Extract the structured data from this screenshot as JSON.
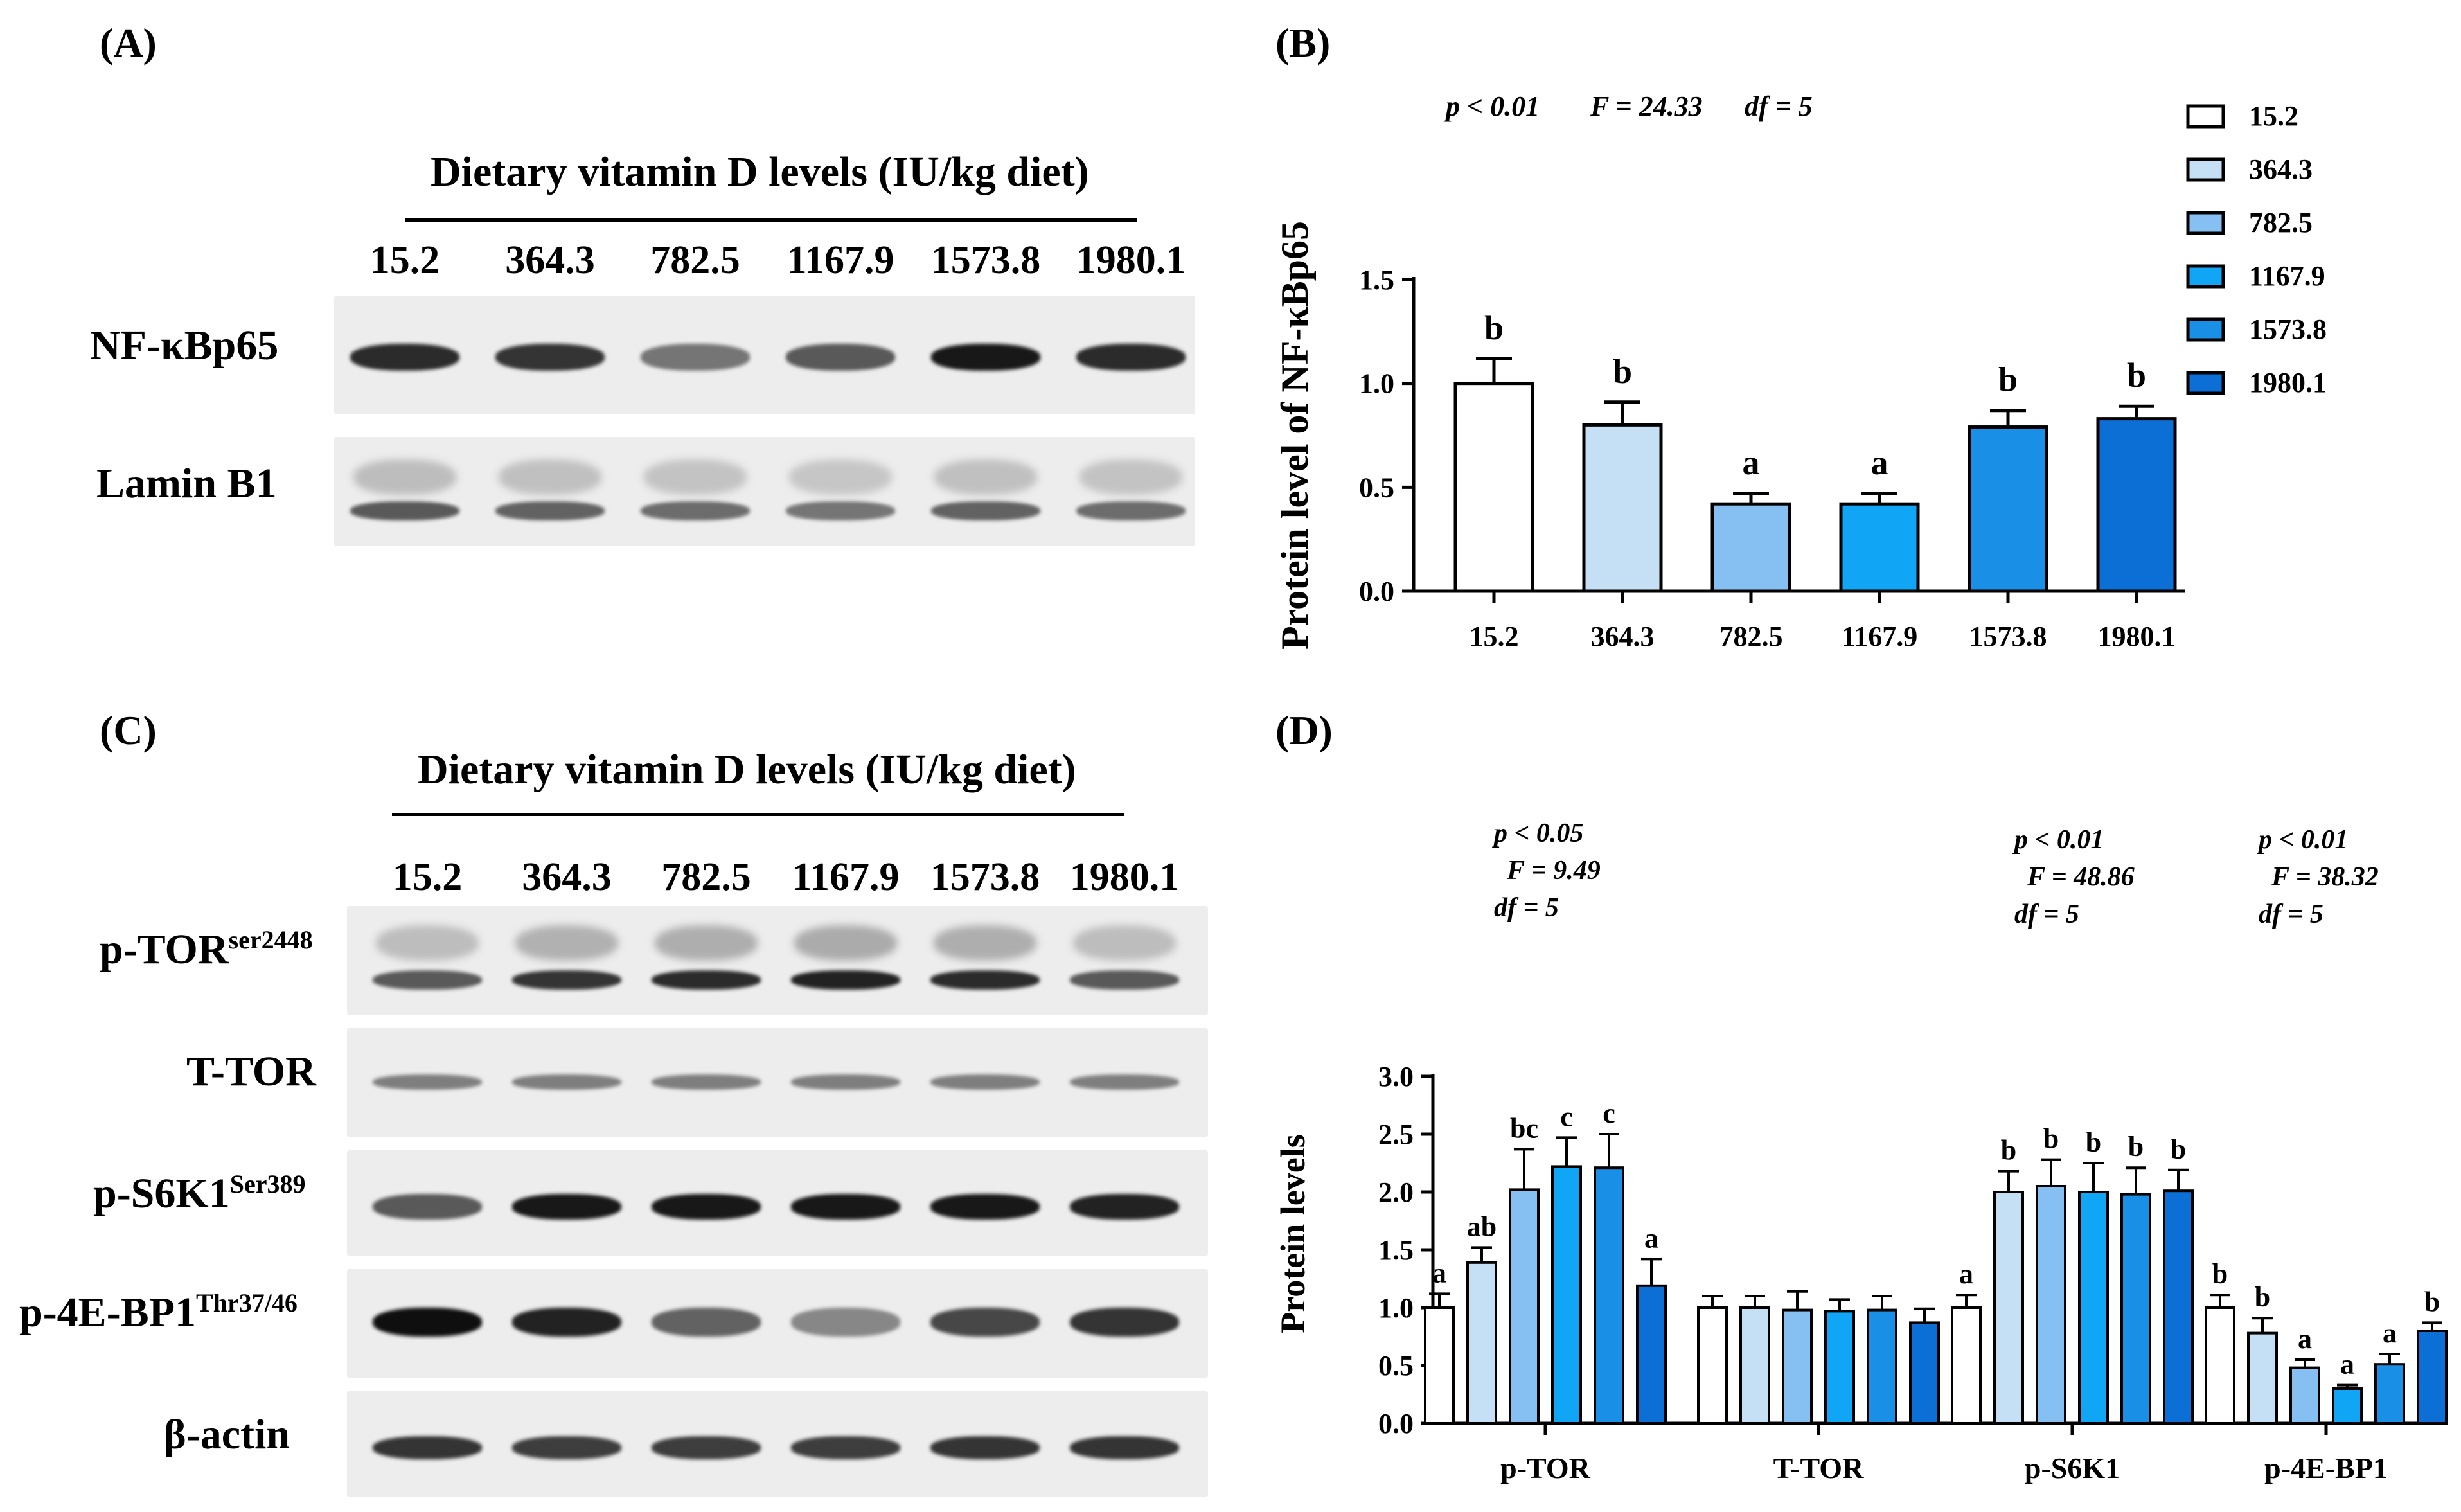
{
  "panels": {
    "A": {
      "label": "(A)",
      "header": "Dietary vitamin D levels (IU/kg diet)",
      "lanes": [
        "15.2",
        "364.3",
        "782.5",
        "1167.9",
        "1573.8",
        "1980.1"
      ],
      "rows": [
        {
          "label": "NF-κBp65",
          "band_intensity": [
            0.85,
            0.8,
            0.45,
            0.6,
            0.95,
            0.85
          ]
        },
        {
          "label": "Lamin B1",
          "band_intensity": [
            0.6,
            0.55,
            0.5,
            0.45,
            0.55,
            0.5
          ]
        }
      ]
    },
    "C": {
      "label": "(C)",
      "header": "Dietary vitamin D levels (IU/kg diet)",
      "lanes": [
        "15.2",
        "364.3",
        "782.5",
        "1167.9",
        "1573.8",
        "1980.1"
      ],
      "rows": [
        {
          "label": "p-TOR",
          "sup": "ser2448",
          "band_intensity": [
            0.6,
            0.8,
            0.85,
            0.9,
            0.85,
            0.6
          ]
        },
        {
          "label": "T-TOR",
          "sup": "",
          "band_intensity": [
            0.4,
            0.4,
            0.4,
            0.4,
            0.4,
            0.4
          ]
        },
        {
          "label": "p-S6K1",
          "sup": "Ser389",
          "band_intensity": [
            0.6,
            0.95,
            0.95,
            0.95,
            0.95,
            0.9
          ]
        },
        {
          "label": "p-4E-BP1",
          "sup": "Thr37/46",
          "band_intensity": [
            1.0,
            0.9,
            0.55,
            0.35,
            0.7,
            0.8
          ]
        },
        {
          "label": "β-actin",
          "sup": "",
          "band_intensity": [
            0.8,
            0.75,
            0.75,
            0.75,
            0.8,
            0.8
          ]
        }
      ]
    }
  },
  "colors": [
    "#ffffff",
    "#c5dff5",
    "#86c0f2",
    "#11a6f5",
    "#1a8fe6",
    "#0b6fd6"
  ],
  "chart_data": [
    {
      "panel_label": "(B)",
      "type": "bar",
      "categories": [
        "15.2",
        "364.3",
        "782.5",
        "1167.9",
        "1573.8",
        "1980.1"
      ],
      "values": [
        1.0,
        0.8,
        0.42,
        0.42,
        0.79,
        0.83
      ],
      "errors": [
        0.12,
        0.11,
        0.05,
        0.05,
        0.08,
        0.06
      ],
      "letters": [
        "b",
        "b",
        "a",
        "a",
        "b",
        "b"
      ],
      "ylabel": "Protein level of NF-κBp65",
      "xlabel": "",
      "ylim": [
        0,
        1.5
      ],
      "yticks": [
        "0.0",
        "0.5",
        "1.0",
        "1.5"
      ],
      "stats": {
        "p": "p < 0.01",
        "F": "F = 24.33",
        "df": "df = 5"
      },
      "legend": [
        "15.2",
        "364.3",
        "782.5",
        "1167.9",
        "1573.8",
        "1980.1"
      ],
      "legend_position": "right"
    },
    {
      "panel_label": "(D)",
      "type": "bar",
      "categories": [
        "p-TOR",
        "T-TOR",
        "p-S6K1",
        "p-4E-BP1"
      ],
      "series": [
        {
          "name": "15.2",
          "values": [
            1.0,
            1.0,
            1.0,
            1.0
          ],
          "errors": [
            0.12,
            0.1,
            0.11,
            0.11
          ],
          "letters": [
            "a",
            "",
            "a",
            "b"
          ]
        },
        {
          "name": "364.3",
          "values": [
            1.39,
            1.0,
            2.0,
            0.78
          ],
          "errors": [
            0.13,
            0.1,
            0.18,
            0.13
          ],
          "letters": [
            "ab",
            "",
            "b",
            "b"
          ]
        },
        {
          "name": "782.5",
          "values": [
            2.02,
            0.98,
            2.05,
            0.48
          ],
          "errors": [
            0.35,
            0.16,
            0.23,
            0.07
          ],
          "letters": [
            "bc",
            "",
            "b",
            "a"
          ]
        },
        {
          "name": "1167.9",
          "values": [
            2.22,
            0.97,
            2.0,
            0.3
          ],
          "errors": [
            0.25,
            0.1,
            0.25,
            0.03
          ],
          "letters": [
            "c",
            "",
            "b",
            "a"
          ]
        },
        {
          "name": "1573.8",
          "values": [
            2.21,
            0.98,
            1.98,
            0.51
          ],
          "errors": [
            0.29,
            0.12,
            0.23,
            0.09
          ],
          "letters": [
            "c",
            "",
            "b",
            "a"
          ]
        },
        {
          "name": "1980.1",
          "values": [
            1.19,
            0.87,
            2.01,
            0.8
          ],
          "errors": [
            0.23,
            0.12,
            0.18,
            0.07
          ],
          "letters": [
            "a",
            "",
            "b",
            "b"
          ]
        }
      ],
      "ylabel": "Protein levels",
      "xlabel": "",
      "ylim": [
        0,
        3.0
      ],
      "yticks": [
        "0.0",
        "0.5",
        "1.0",
        "1.5",
        "2.0",
        "2.5",
        "3.0"
      ],
      "stats": [
        {
          "category": "p-TOR",
          "p": "p < 0.05",
          "F": "F = 9.49",
          "df": "df = 5"
        },
        {
          "category": "p-S6K1",
          "p": "p < 0.01",
          "F": "F = 48.86",
          "df": "df = 5"
        },
        {
          "category": "p-4E-BP1",
          "p": "p < 0.01",
          "F": "F = 38.32",
          "df": "df = 5"
        }
      ]
    }
  ]
}
